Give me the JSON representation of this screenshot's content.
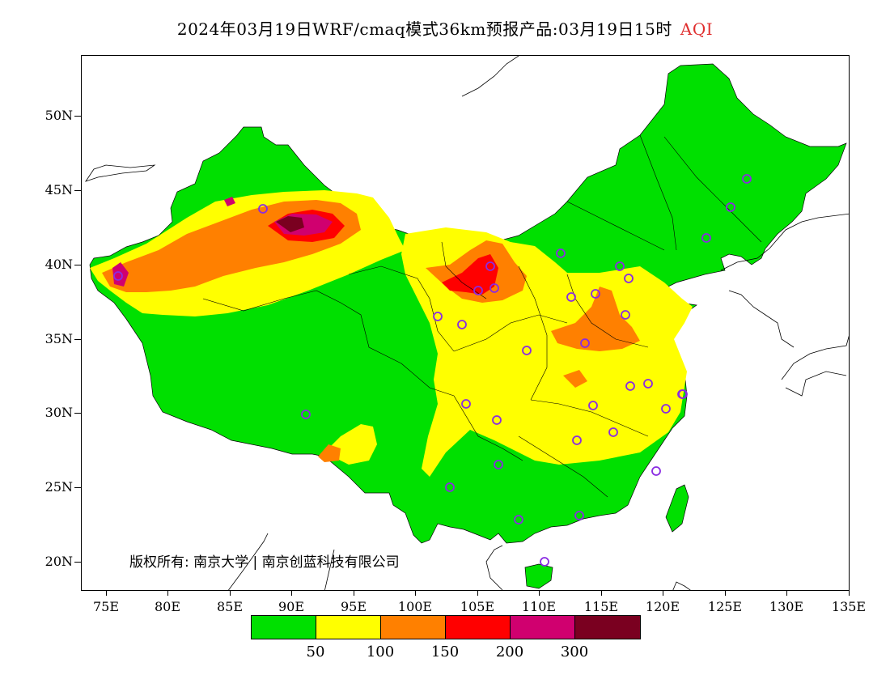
{
  "title": {
    "text": "2024年03月19日WRF/cmaq模式36km预报产品:03月19日15时",
    "highlight": "AQI",
    "highlight_color": "#e03030"
  },
  "map": {
    "lon_range": [
      73,
      135
    ],
    "lat_range": [
      18,
      54
    ],
    "y_ticks": [
      "50N",
      "45N",
      "40N",
      "35N",
      "30N",
      "25N",
      "20N"
    ],
    "y_tick_values": [
      50,
      45,
      40,
      35,
      30,
      25,
      20
    ],
    "x_ticks": [
      "75E",
      "80E",
      "85E",
      "90E",
      "95E",
      "100E",
      "105E",
      "110E",
      "115E",
      "120E",
      "125E",
      "130E",
      "135E"
    ],
    "x_tick_values": [
      75,
      80,
      85,
      90,
      95,
      100,
      105,
      110,
      115,
      120,
      125,
      130,
      135
    ],
    "copyright": "版权所有: 南京大学 | 南京创蓝科技有限公司",
    "station_marker_color": "#8a2be2"
  },
  "legend": {
    "colors": [
      "#00e000",
      "#ffff00",
      "#ff8000",
      "#ff0000",
      "#d0006f",
      "#7a0020"
    ],
    "labels": [
      "50",
      "100",
      "150",
      "200",
      "300"
    ]
  }
}
